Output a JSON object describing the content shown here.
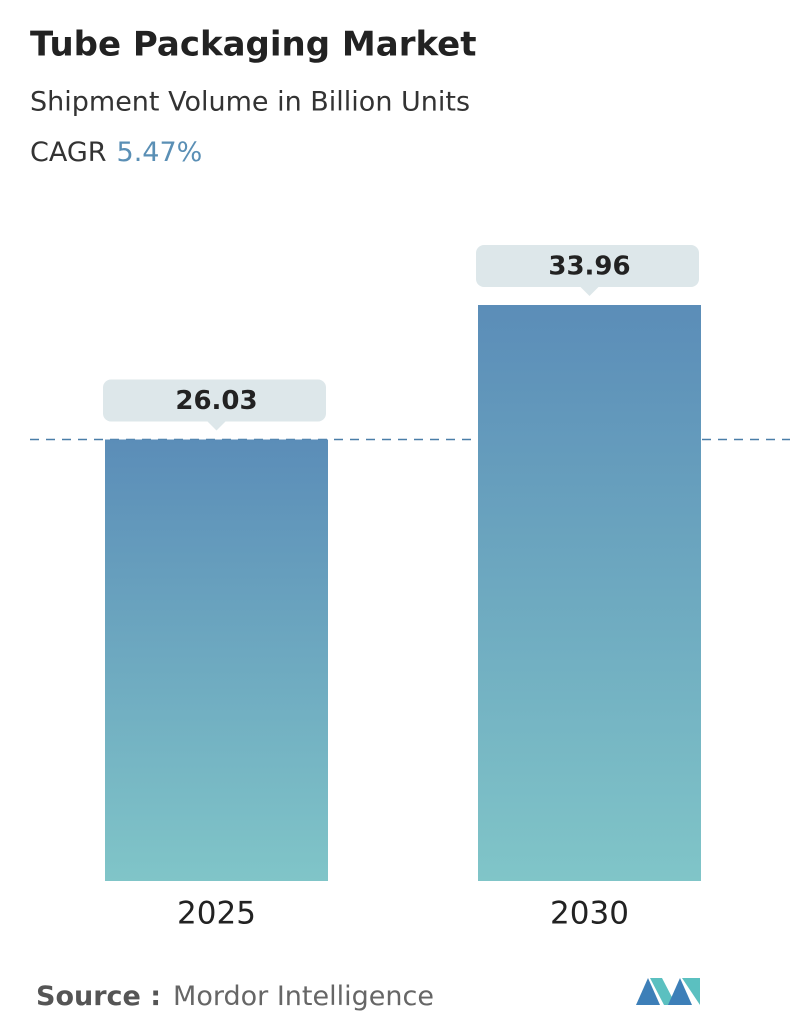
{
  "chart_data": {
    "type": "bar",
    "title": "Tube Packaging Market",
    "subtitle": "Shipment Volume in Billion Units",
    "cagr_label": "CAGR",
    "cagr_value": "5.47%",
    "categories": [
      "2025",
      "2030"
    ],
    "values": [
      26.03,
      33.96
    ],
    "color_top": "#5b8db8",
    "color_bottom": "#80c5c8",
    "source_label": "Source :",
    "source": "Mordor Intelligence"
  }
}
